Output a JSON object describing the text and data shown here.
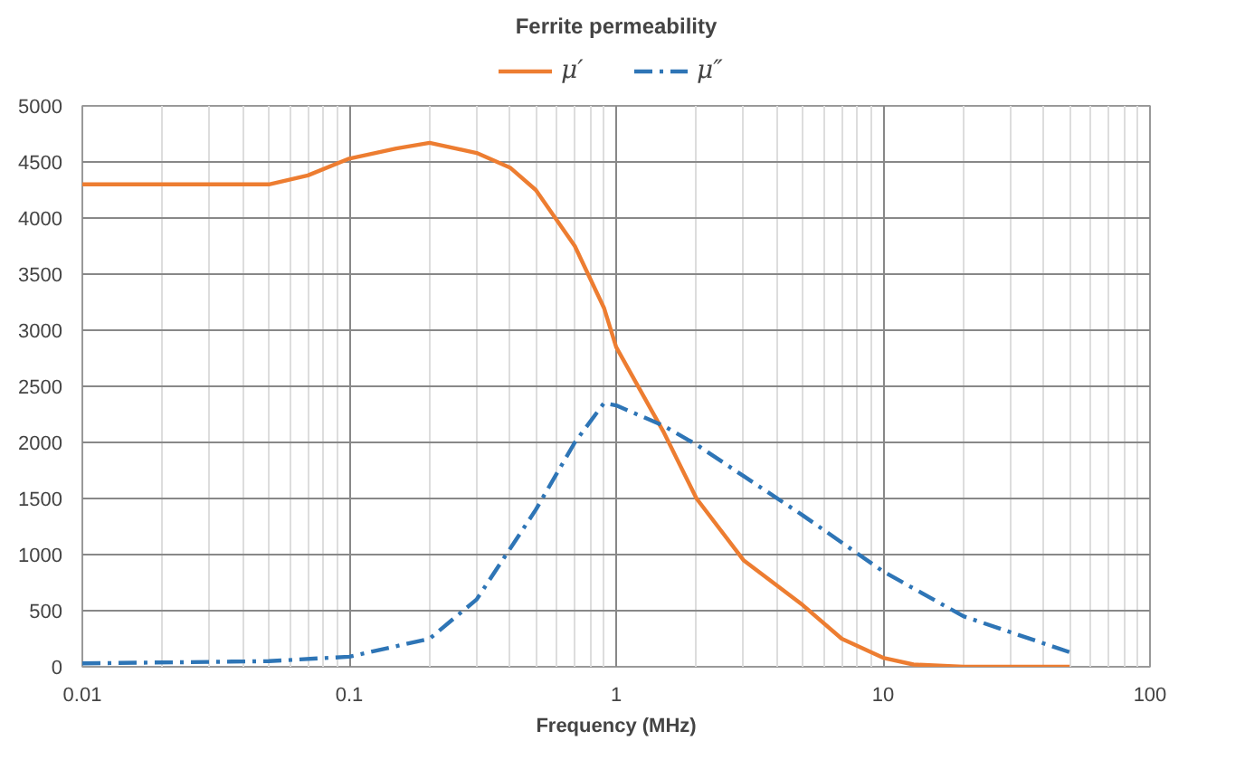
{
  "chart_data": {
    "type": "line",
    "title": "Ferrite permeability",
    "xlabel": "Frequency (MHz)",
    "log": "x",
    "xlim": [
      0.01,
      100
    ],
    "ylim": [
      0,
      5000
    ],
    "xticks": [
      0.01,
      0.1,
      1,
      10,
      100
    ],
    "yticks": [
      0,
      500,
      1000,
      1500,
      2000,
      2500,
      3000,
      3500,
      4000,
      4500,
      5000
    ],
    "grid": true,
    "legend": "top",
    "marker": "none",
    "series": [
      {
        "name": "μ′",
        "color": "#ed7d31",
        "line_style": "solid",
        "x": [
          0.01,
          0.02,
          0.05,
          0.07,
          0.1,
          0.15,
          0.2,
          0.3,
          0.4,
          0.5,
          0.7,
          0.9,
          1.0,
          1.5,
          2,
          3,
          5,
          7,
          10,
          13,
          20,
          50
        ],
        "values": [
          4300,
          4300,
          4300,
          4380,
          4530,
          4620,
          4670,
          4580,
          4450,
          4250,
          3750,
          3200,
          2850,
          2100,
          1500,
          950,
          550,
          250,
          80,
          20,
          0,
          0
        ]
      },
      {
        "name": "μ″",
        "color": "#2e75b6",
        "line_style": "dashdot",
        "x": [
          0.01,
          0.05,
          0.1,
          0.2,
          0.3,
          0.5,
          0.7,
          0.9,
          1,
          1.5,
          2,
          3,
          5,
          10,
          20,
          50
        ],
        "values": [
          30,
          50,
          90,
          250,
          600,
          1400,
          2000,
          2350,
          2330,
          2150,
          1980,
          1700,
          1350,
          850,
          450,
          130
        ]
      }
    ]
  }
}
